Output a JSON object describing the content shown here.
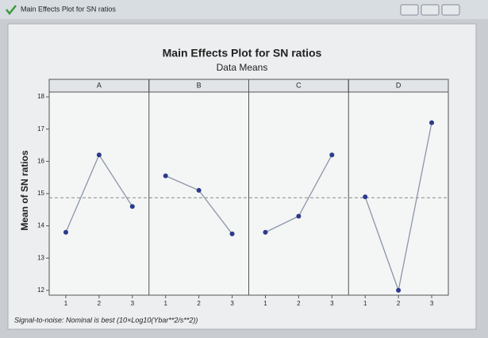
{
  "window": {
    "title": "Main Effects Plot for SN ratios"
  },
  "chart_data": {
    "type": "line",
    "title": "Main Effects Plot for SN ratios",
    "subtitle": "Data Means",
    "ylabel": "Mean of SN ratios",
    "footnote": "Signal-to-noise: Nominal is best (10×Log10(Ybar**2/s**2))",
    "panels": [
      {
        "name": "A",
        "categories": [
          "1",
          "2",
          "3"
        ],
        "values": [
          13.8,
          16.2,
          14.6
        ]
      },
      {
        "name": "B",
        "categories": [
          "1",
          "2",
          "3"
        ],
        "values": [
          15.55,
          15.1,
          13.75
        ]
      },
      {
        "name": "C",
        "categories": [
          "1",
          "2",
          "3"
        ],
        "values": [
          13.8,
          14.3,
          16.2
        ]
      },
      {
        "name": "D",
        "categories": [
          "1",
          "2",
          "3"
        ],
        "values": [
          14.9,
          12.0,
          17.2
        ]
      }
    ],
    "reference_line": 14.87,
    "color": "#2b3a8c",
    "line_color": "#8a97a8",
    "ylim": [
      11.85,
      18.15
    ],
    "yticks": [
      12,
      13,
      14,
      15,
      16,
      17,
      18
    ]
  }
}
